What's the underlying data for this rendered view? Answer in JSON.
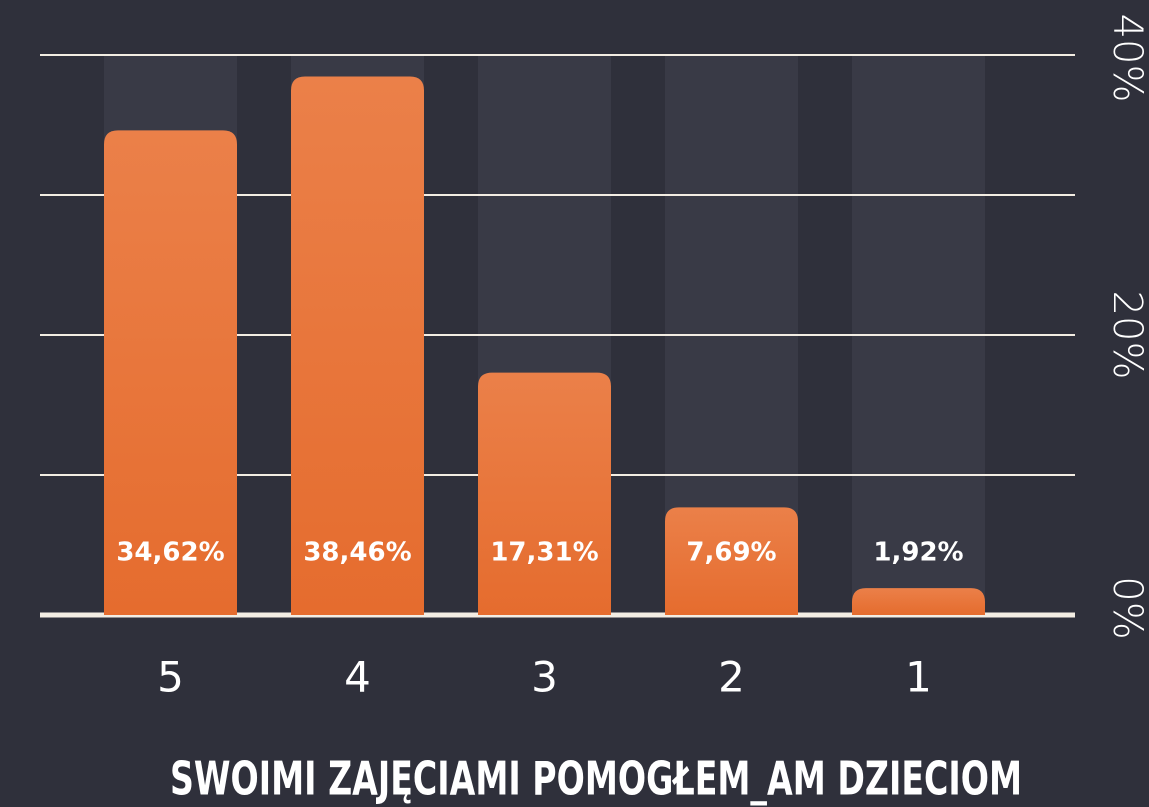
{
  "chart_data": {
    "type": "bar",
    "title": "SWOIMI ZAJĘCIAMI POMOGŁEM_AM DZIECIOM",
    "categories": [
      "5",
      "4",
      "3",
      "2",
      "1"
    ],
    "values": [
      34.62,
      38.46,
      17.31,
      7.69,
      1.92
    ],
    "value_labels": [
      "34,62%",
      "38,46%",
      "17,31%",
      "7,69%",
      "1,92%"
    ],
    "color": "#e8763c",
    "ylim": [
      0,
      40
    ],
    "yticks": [
      {
        "value": 0,
        "label": "0%"
      },
      {
        "value": 20,
        "label": "20%"
      },
      {
        "value": 40,
        "label": "40%"
      }
    ],
    "ygrid": [
      0,
      10,
      20,
      30,
      40
    ]
  }
}
